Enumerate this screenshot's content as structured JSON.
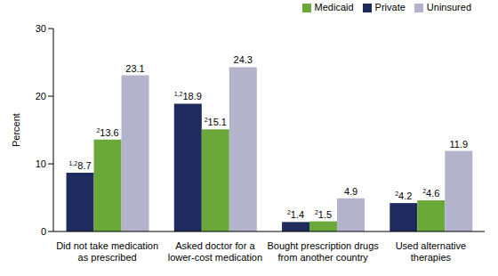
{
  "chart_data": {
    "type": "bar",
    "y_label": "Percent",
    "categories": [
      "Did not take medication as prescribed",
      "Asked doctor for a lower-cost medication",
      "Bought prescription drugs from another country",
      "Used alternative therapies"
    ],
    "series": [
      {
        "name": "Private",
        "color": "#1f2b5e",
        "values": [
          8.7,
          18.9,
          1.4,
          4.2
        ],
        "value_notes": [
          "1,2",
          "1,2",
          "2",
          "2"
        ]
      },
      {
        "name": "Medicaid",
        "color": "#6aa83a",
        "values": [
          13.6,
          15.1,
          1.5,
          4.6
        ],
        "value_notes": [
          "2",
          "2",
          "2",
          "2"
        ]
      },
      {
        "name": "Uninsured",
        "color": "#b4b3cc",
        "values": [
          23.1,
          24.3,
          4.9,
          11.9
        ],
        "value_notes": [
          null,
          null,
          null,
          null
        ]
      }
    ],
    "ylim": [
      0,
      30
    ],
    "yticks": [
      0,
      10,
      20,
      30
    ],
    "grid": false,
    "legend": "top-right",
    "data_labels": true
  }
}
